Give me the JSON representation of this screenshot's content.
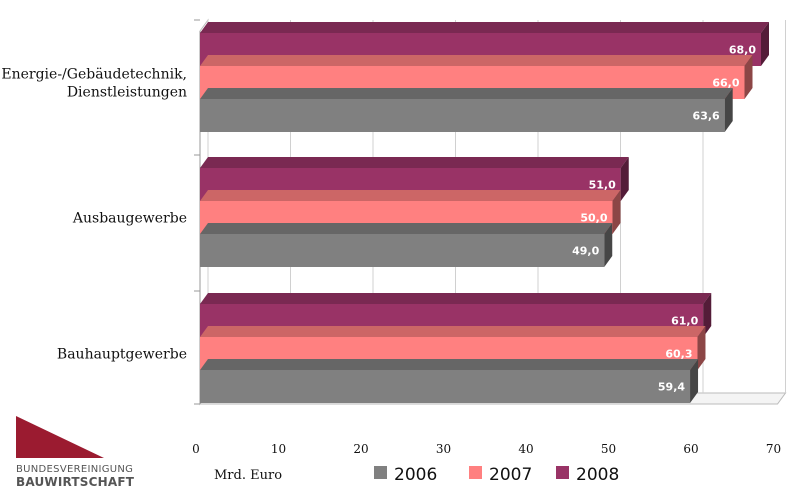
{
  "chart_data": {
    "type": "bar",
    "orientation": "horizontal",
    "categories": [
      "Energie-/Gebäudetechnik,\nDienstleistungen",
      "Ausbaugewerbe",
      "Bauhauptgewerbe"
    ],
    "series": [
      {
        "name": "2006",
        "values": [
          63.6,
          49.0,
          59.4
        ],
        "labels": [
          "63,6",
          "49,0",
          "59,4"
        ],
        "color": "#808080"
      },
      {
        "name": "2007",
        "values": [
          66.0,
          50.0,
          60.3
        ],
        "labels": [
          "66,0",
          "50,0",
          "60,3"
        ],
        "color": "#ff8080"
      },
      {
        "name": "2008",
        "values": [
          68.0,
          51.0,
          61.0
        ],
        "labels": [
          "68,0",
          "51,0",
          "61,0"
        ],
        "color": "#993366"
      }
    ],
    "xlim": [
      0,
      70
    ],
    "xticks": [
      0,
      10,
      20,
      30,
      40,
      50,
      60,
      70
    ],
    "xlabel": "Mrd. Euro",
    "grid": true,
    "three_d": true,
    "legend_position": "bottom"
  },
  "logo": {
    "line1": "BUNDESVEREINIGUNG",
    "line2": "BAUWIRTSCHAFT",
    "color": "#9b1b30"
  }
}
